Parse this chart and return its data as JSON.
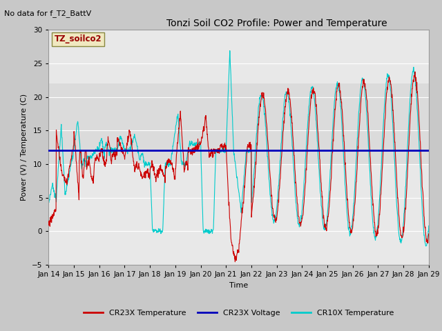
{
  "title": "Tonzi Soil CO2 Profile: Power and Temperature",
  "subtitle": "No data for f_T2_BattV",
  "ylabel": "Power (V) / Temperature (C)",
  "xlabel": "Time",
  "ylim": [
    -5,
    30
  ],
  "yticks": [
    -5,
    0,
    5,
    10,
    15,
    20,
    25,
    30
  ],
  "x_labels": [
    "Jan 14",
    "Jan 15",
    "Jan 16",
    "Jan 17",
    "Jan 18",
    "Jan 19",
    "Jan 20",
    "Jan 21",
    "Jan 22",
    "Jan 23",
    "Jan 24",
    "Jan 25",
    "Jan 26",
    "Jan 27",
    "Jan 28",
    "Jan 29"
  ],
  "voltage_line": 12.0,
  "legend_label_box": "TZ_soilco2",
  "fig_bg_color": "#c8c8c8",
  "plot_bg_color": "#e8e8e8",
  "white_band_low": 10,
  "white_band_high": 22,
  "grid_color": "#ffffff",
  "line_red": "#cc0000",
  "line_blue": "#0000bb",
  "line_cyan": "#00cccc",
  "legend_entries": [
    "CR23X Temperature",
    "CR23X Voltage",
    "CR10X Temperature"
  ]
}
